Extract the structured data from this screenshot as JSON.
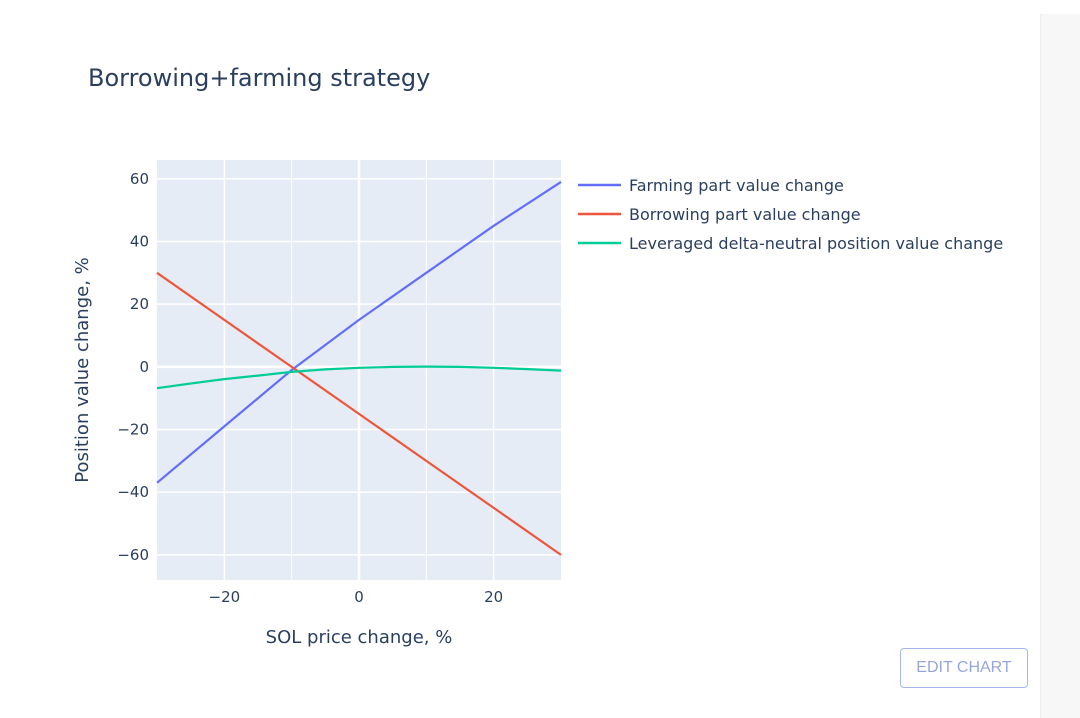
{
  "chart_data": {
    "type": "line",
    "title": "Borrowing+farming strategy",
    "xlabel": "SOL price change, %",
    "ylabel": "Position value change, %",
    "xlim": [
      -30,
      30
    ],
    "ylim": [
      -68,
      66
    ],
    "xticks": [
      -20,
      0,
      20
    ],
    "yticks": [
      -60,
      -40,
      -20,
      0,
      20,
      40,
      60
    ],
    "xtick_labels": [
      "−20",
      "0",
      "20"
    ],
    "ytick_labels": [
      "−60",
      "−40",
      "−20",
      "0",
      "20",
      "40",
      "60"
    ],
    "grid": true,
    "legend_position": "right",
    "series": [
      {
        "name": "Farming part value change",
        "color": "#636efa",
        "x": [
          -30,
          -20,
          -10,
          0,
          10,
          20,
          30
        ],
        "y": [
          -37,
          -19,
          -1,
          15,
          30,
          45,
          59
        ]
      },
      {
        "name": "Borrowing part value change",
        "color": "#ef553b",
        "x": [
          -30,
          -20,
          -10,
          0,
          10,
          20,
          30
        ],
        "y": [
          30,
          15,
          0,
          -15,
          -30,
          -45,
          -60
        ]
      },
      {
        "name": "Leveraged delta-neutral position value change",
        "color": "#00cc96",
        "x": [
          -30,
          -25,
          -20,
          -15,
          -10,
          -5,
          0,
          5,
          10,
          15,
          20,
          25,
          30
        ],
        "y": [
          -6.8,
          -5.3,
          -3.9,
          -2.8,
          -1.6,
          -0.8,
          -0.3,
          0.0,
          0.1,
          0.0,
          -0.3,
          -0.7,
          -1.2
        ]
      }
    ]
  },
  "toolbar": {
    "edit_label": "EDIT CHART"
  }
}
